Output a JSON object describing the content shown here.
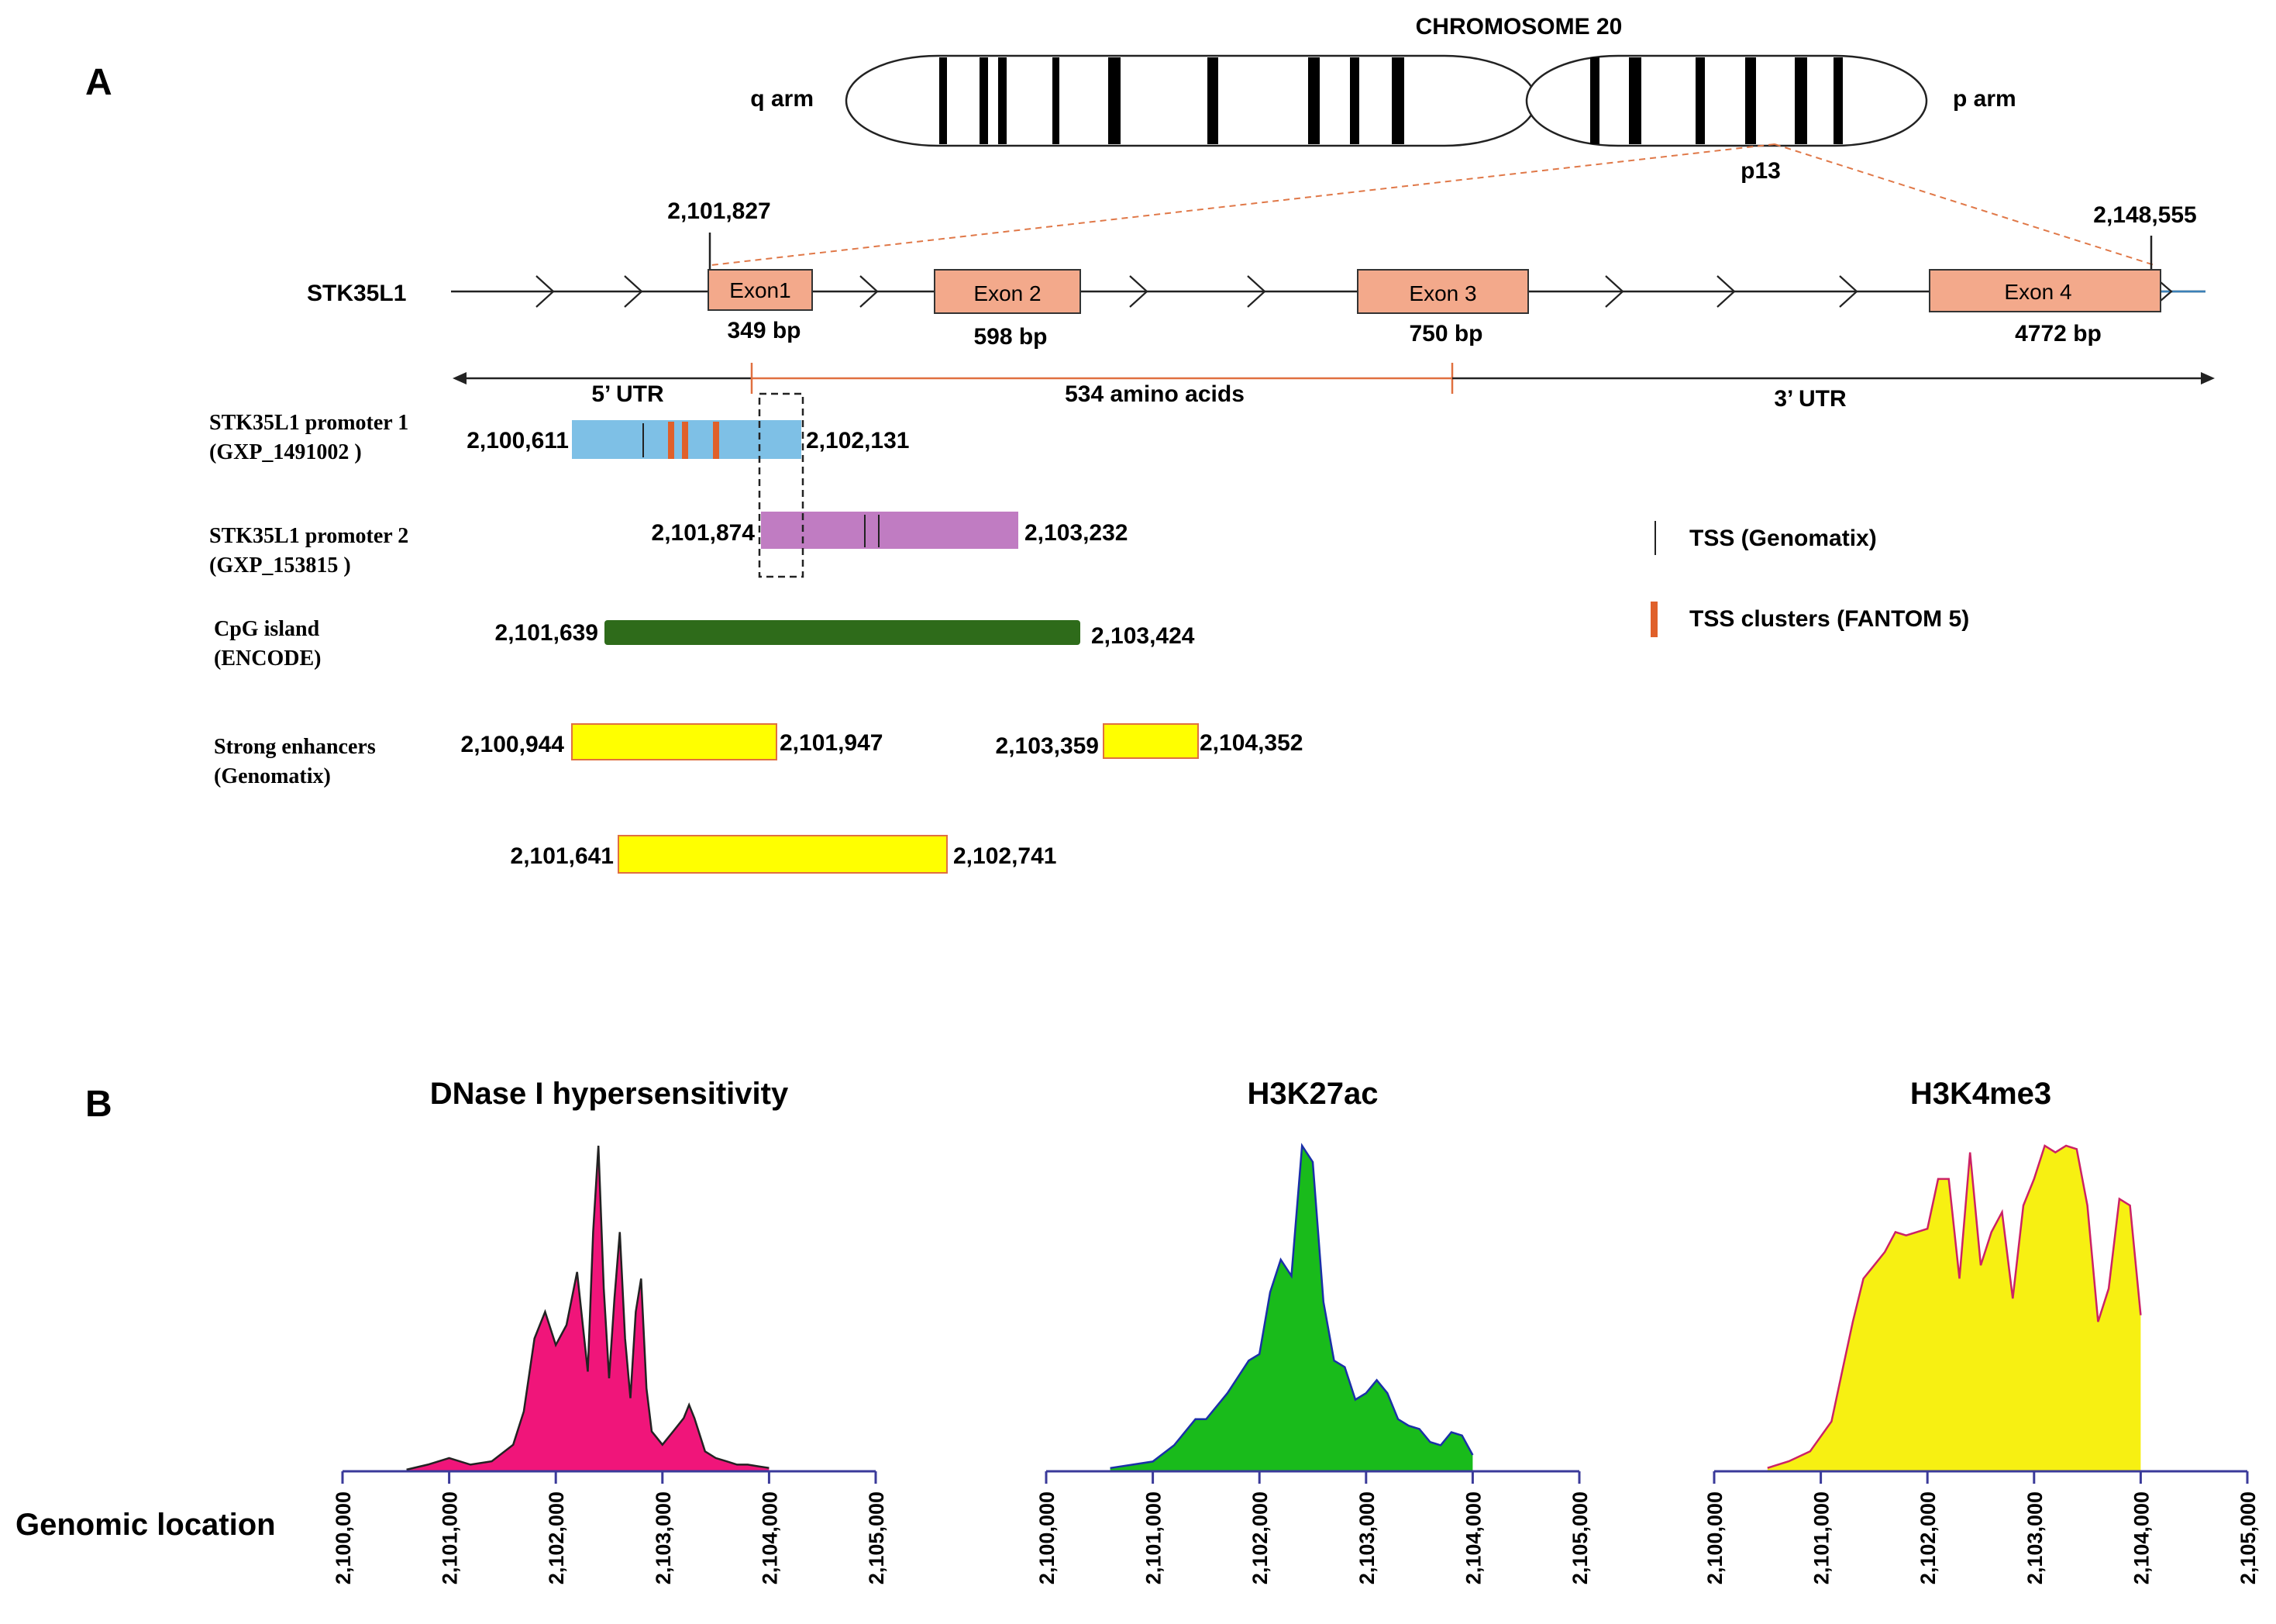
{
  "panel_a": {
    "letter": "A",
    "chromosome": {
      "title": "CHROMOSOME 20",
      "q_label": "q arm",
      "p_label": "p arm",
      "band_label": "p13"
    },
    "gene": {
      "name": "STK35L1",
      "start": "2,101,827",
      "end": "2,148,555",
      "exons": [
        {
          "label": "Exon1",
          "size": "349 bp"
        },
        {
          "label": "Exon 2",
          "size": "598 bp"
        },
        {
          "label": "Exon 3",
          "size": "750 bp"
        },
        {
          "label": "Exon 4",
          "size": "4772 bp"
        }
      ],
      "utr5": "5’ UTR",
      "coding": "534 amino acids",
      "utr3": "3’ UTR"
    },
    "tracks": [
      {
        "label1": "STK35L1 promoter 1",
        "label2": "(GXP_1491002 )",
        "start": "2,100,611",
        "end": "2,102,131",
        "color": "#7ec0e6"
      },
      {
        "label1": "STK35L1 promoter 2",
        "label2": "(GXP_153815 )",
        "start": "2,101,874",
        "end": "2,103,232",
        "color": "#c07cc2"
      },
      {
        "label1": "CpG island",
        "label2": "(ENCODE)",
        "start": "2,101,639",
        "end": "2,103,424",
        "color": "#2e6b1a"
      },
      {
        "label1": "Strong enhancers",
        "label2": "(Genomatix)"
      }
    ],
    "enhancers": [
      {
        "start": "2,100,944",
        "end": "2,101,947"
      },
      {
        "start": "2,103,359",
        "end": "2,104,352"
      },
      {
        "start": "2,101,641",
        "end": "2,102,741"
      }
    ],
    "enhancer_color": "#ffff00",
    "legend": {
      "tss": "TSS (Genomatix)",
      "clusters": "TSS clusters (FANTOM 5)"
    }
  },
  "panel_b": {
    "letter": "B",
    "row_label": "Genomic location",
    "ticks": [
      "2,100,000",
      "2,101,000",
      "2,102,000",
      "2,103,000",
      "2,104,000",
      "2,105,000"
    ],
    "chart_data": [
      {
        "type": "area",
        "title": "DNase I hypersensitivity",
        "xlim": [
          2100000,
          2105000
        ],
        "color": "#f0157a",
        "line_color": "#222222",
        "x": [
          2100600,
          2100800,
          2101000,
          2101200,
          2101400,
          2101600,
          2101700,
          2101800,
          2101900,
          2102000,
          2102100,
          2102200,
          2102300,
          2102350,
          2102400,
          2102450,
          2102500,
          2102550,
          2102600,
          2102650,
          2102700,
          2102750,
          2102800,
          2102850,
          2102900,
          2102950,
          2103000,
          2103100,
          2103200,
          2103250,
          2103300,
          2103400,
          2103500,
          2103600,
          2103700,
          2103800,
          2103900,
          2104000
        ],
        "values": [
          0.5,
          2,
          4,
          2,
          3,
          8,
          18,
          40,
          48,
          38,
          44,
          60,
          30,
          72,
          98,
          55,
          28,
          52,
          72,
          40,
          22,
          48,
          58,
          25,
          12,
          10,
          8,
          12,
          16,
          20,
          16,
          6,
          4,
          3,
          2,
          2,
          1.5,
          1
        ]
      },
      {
        "type": "area",
        "title": "H3K27ac",
        "xlim": [
          2100000,
          2105000
        ],
        "color": "#19bb1b",
        "line_color": "#1a2fa8",
        "x": [
          2100600,
          2100800,
          2101000,
          2101200,
          2101400,
          2101500,
          2101700,
          2101900,
          2102000,
          2102100,
          2102200,
          2102300,
          2102400,
          2102500,
          2102600,
          2102700,
          2102800,
          2102900,
          2103000,
          2103100,
          2103200,
          2103300,
          2103400,
          2103500,
          2103600,
          2103700,
          2103800,
          2103900,
          2104000
        ],
        "values": [
          1,
          2,
          3,
          8,
          16,
          16,
          24,
          34,
          36,
          55,
          65,
          60,
          100,
          95,
          52,
          34,
          32,
          22,
          24,
          28,
          24,
          16,
          14,
          13,
          9,
          8,
          12,
          11,
          5
        ]
      },
      {
        "type": "area",
        "title": "H3K4me3",
        "xlim": [
          2100000,
          2105000
        ],
        "color": "#f7f012",
        "line_color": "#cc2266",
        "x": [
          2100500,
          2100700,
          2100900,
          2101100,
          2101200,
          2101300,
          2101400,
          2101500,
          2101600,
          2101700,
          2101800,
          2101900,
          2102000,
          2102100,
          2102200,
          2102300,
          2102400,
          2102500,
          2102600,
          2102700,
          2102800,
          2102900,
          2103000,
          2103100,
          2103200,
          2103300,
          2103400,
          2103500,
          2103600,
          2103700,
          2103800,
          2103900,
          2104000
        ],
        "values": [
          1,
          3,
          6,
          15,
          30,
          45,
          58,
          62,
          66,
          72,
          71,
          72,
          73,
          88,
          88,
          58,
          96,
          62,
          72,
          78,
          52,
          80,
          88,
          98,
          96,
          98,
          97,
          80,
          45,
          55,
          82,
          80,
          47
        ]
      }
    ]
  }
}
